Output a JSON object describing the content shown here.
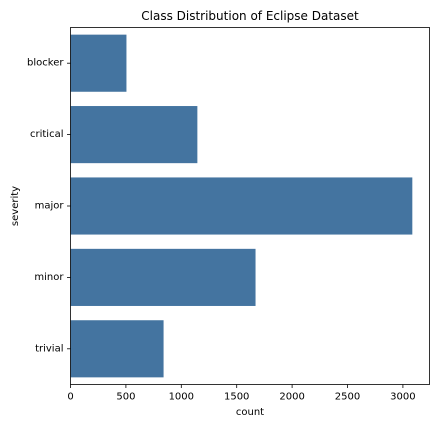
{
  "chart_data": {
    "type": "bar",
    "orientation": "horizontal",
    "title": "Class Distribution of Eclipse Dataset",
    "xlabel": "count",
    "ylabel": "severity",
    "categories": [
      "blocker",
      "critical",
      "major",
      "minor",
      "trivial"
    ],
    "values": [
      505,
      1145,
      3085,
      1670,
      840
    ],
    "xlim": [
      0,
      3240
    ],
    "xticks": [
      0,
      500,
      1000,
      1500,
      2000,
      2500,
      3000
    ],
    "grid": false,
    "legend": "none",
    "bar_color": "#4474a0"
  }
}
